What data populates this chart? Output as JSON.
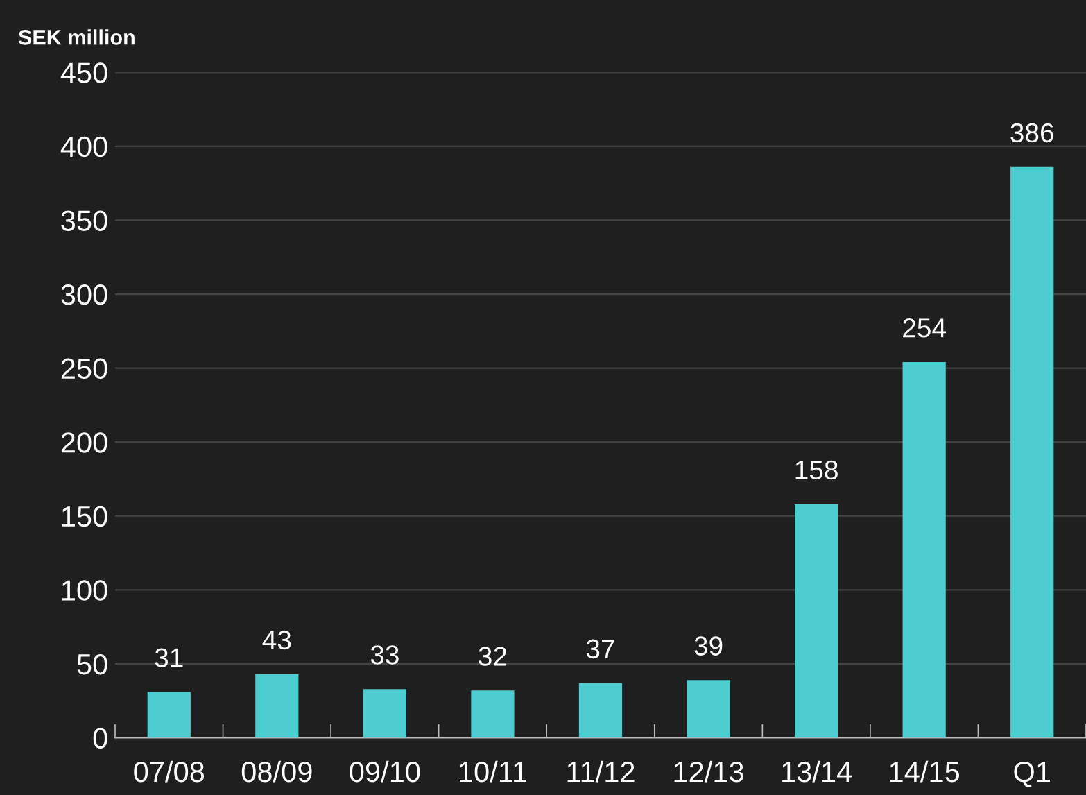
{
  "chart_data": {
    "type": "bar",
    "ylabel": "SEK million",
    "categories": [
      "07/08",
      "08/09",
      "09/10",
      "10/11",
      "11/12",
      "12/13",
      "13/14",
      "14/15",
      "Q1"
    ],
    "values": [
      31,
      43,
      33,
      32,
      37,
      39,
      158,
      254,
      386
    ],
    "color": "#4ecdd0",
    "ylim": [
      0,
      450
    ],
    "yticks": [
      0,
      50,
      100,
      150,
      200,
      250,
      300,
      350,
      400,
      450
    ],
    "grid": "y",
    "data_labels": true
  }
}
